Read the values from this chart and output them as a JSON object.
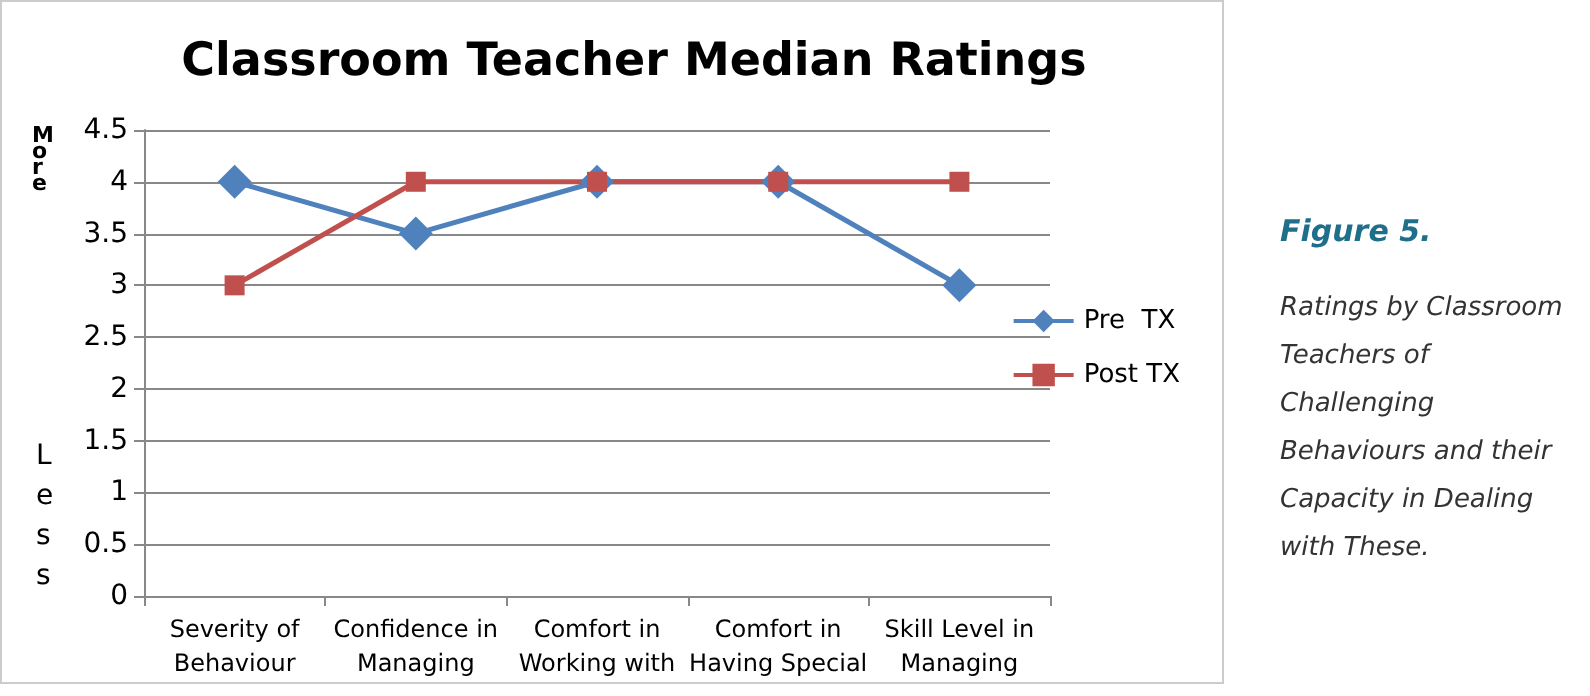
{
  "chart_data": {
    "type": "line",
    "title": "Classroom Teacher Median Ratings",
    "categories": [
      "Severity of\nBehaviour",
      "Confidence in\nManaging",
      "Comfort in\nWorking with",
      "Comfort in\nHaving Special",
      "Skill Level in\nManaging"
    ],
    "series": [
      {
        "name": "Pre  TX",
        "color": "#4f81bd",
        "marker": "diamond",
        "values": [
          4,
          3.5,
          4,
          4,
          3
        ]
      },
      {
        "name": "Post TX",
        "color": "#c0504d",
        "marker": "square",
        "values": [
          3,
          4,
          4,
          4,
          4
        ]
      }
    ],
    "ylim": [
      0,
      4.5
    ],
    "yticks": [
      0,
      0.5,
      1,
      1.5,
      2,
      2.5,
      3,
      3.5,
      4,
      4.5
    ],
    "grid": "y",
    "legend": "right",
    "annotations": [
      "More",
      "Less",
      "Figure 5.",
      "Ratings by Classroom Teachers of Challenging Behaviours and their Capacity in Dealing with These."
    ]
  }
}
